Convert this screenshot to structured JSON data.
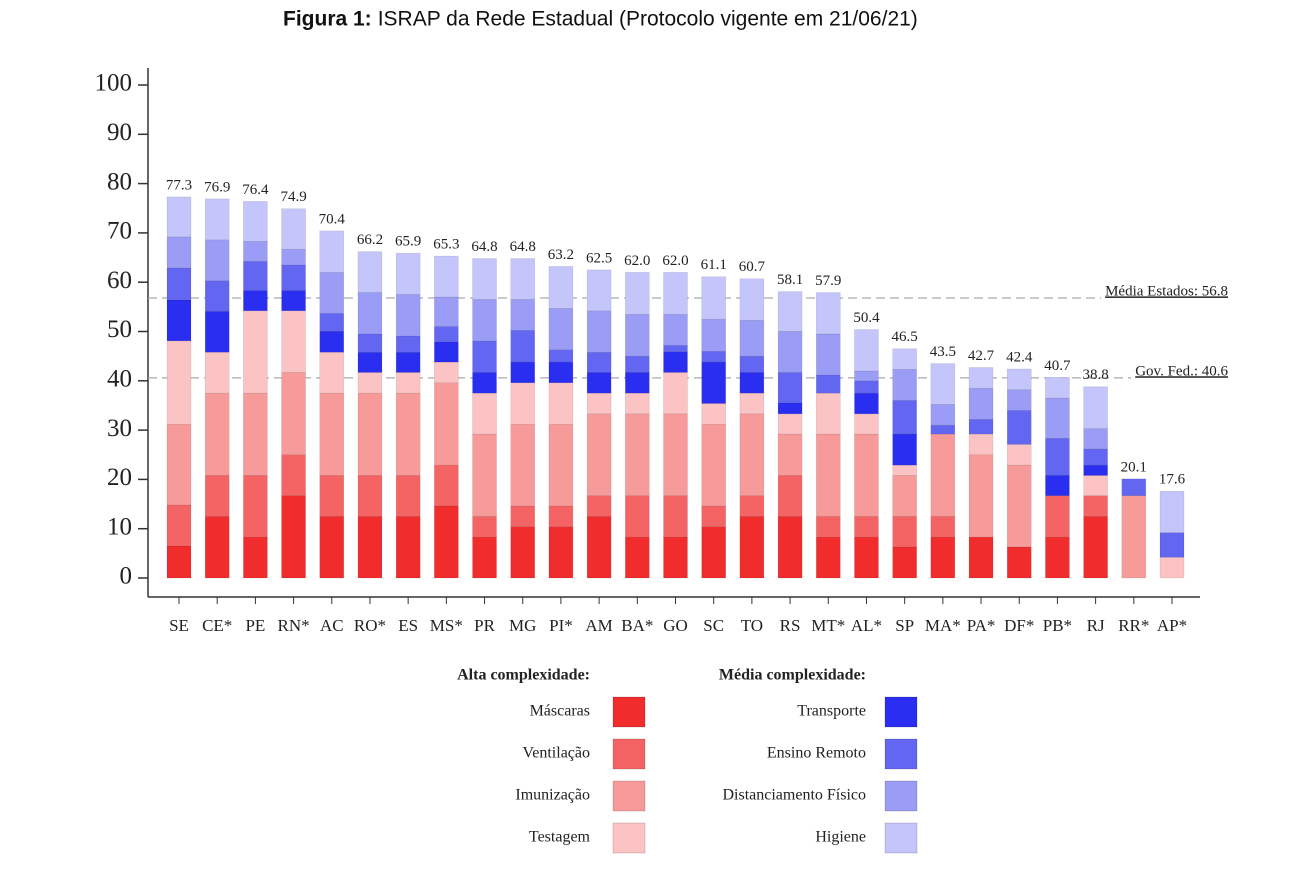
{
  "chart_data": {
    "type": "stacked_bar",
    "title_label": "Figura 1:",
    "title": "ISRAP da Rede Estadual (Protocolo vigente em 21/06/21)",
    "categories": [
      "SE",
      "CE*",
      "PE",
      "RN*",
      "AC",
      "RO*",
      "ES",
      "MS*",
      "PR",
      "MG",
      "PI*",
      "AM",
      "BA*",
      "GO",
      "SC",
      "TO",
      "RS",
      "MT*",
      "AL*",
      "SP",
      "MA*",
      "PA*",
      "DF*",
      "PB*",
      "RJ",
      "RR*",
      "AP*"
    ],
    "series": [
      {
        "name": "Máscaras",
        "color": "#f02c2c",
        "values": [
          6.5,
          12.5,
          8.3,
          16.7,
          12.5,
          12.5,
          12.5,
          14.6,
          8.3,
          10.4,
          10.4,
          12.5,
          8.3,
          8.3,
          10.4,
          12.5,
          12.5,
          8.3,
          8.3,
          6.3,
          8.3,
          8.3,
          6.3,
          8.3,
          12.5,
          0,
          0
        ]
      },
      {
        "name": "Ventilação",
        "color": "#f46464",
        "values": [
          8.3,
          8.3,
          12.5,
          8.3,
          8.3,
          8.3,
          8.3,
          8.3,
          4.2,
          4.2,
          4.2,
          4.2,
          8.4,
          8.4,
          4.2,
          4.2,
          8.3,
          4.2,
          4.2,
          6.2,
          4.2,
          0,
          0,
          8.4,
          4.2,
          0,
          0
        ]
      },
      {
        "name": "Imunização",
        "color": "#f79a9a",
        "values": [
          16.4,
          16.7,
          16.7,
          16.7,
          16.7,
          16.7,
          16.7,
          16.7,
          16.7,
          16.6,
          16.6,
          16.6,
          16.6,
          16.6,
          16.6,
          16.6,
          8.4,
          16.7,
          16.7,
          8.3,
          16.7,
          16.7,
          16.6,
          0,
          0,
          16.7,
          0
        ]
      },
      {
        "name": "Testagem",
        "color": "#fbc3c3",
        "values": [
          16.9,
          8.3,
          16.7,
          12.5,
          8.3,
          4.2,
          4.2,
          4.2,
          8.3,
          8.4,
          8.4,
          4.2,
          4.2,
          8.4,
          4.2,
          4.2,
          4.1,
          8.3,
          4.1,
          2.1,
          0,
          4.2,
          4.2,
          0,
          4.1,
          0,
          4.2
        ]
      },
      {
        "name": "Transporte",
        "color": "#2a2ef0",
        "values": [
          8.3,
          8.3,
          4.1,
          4.1,
          4.2,
          4.1,
          4.1,
          4.1,
          4.2,
          4.2,
          4.2,
          4.2,
          4.2,
          4.2,
          8.4,
          4.2,
          2.2,
          0,
          4.2,
          6.3,
          0,
          0,
          0,
          4.1,
          2.1,
          0,
          0
        ]
      },
      {
        "name": "Ensino Remoto",
        "color": "#6366f0",
        "values": [
          6.5,
          6.2,
          5.9,
          5.2,
          3.7,
          3.7,
          3.3,
          3.1,
          6.4,
          6.4,
          2.5,
          4.1,
          3.3,
          1.3,
          2.2,
          3.3,
          6.2,
          3.7,
          2.5,
          6.8,
          1.8,
          3.0,
          6.9,
          7.5,
          3.3,
          3.4,
          5.0
        ]
      },
      {
        "name": "Distanciamento Físico",
        "color": "#9a9cf5",
        "values": [
          6.3,
          8.3,
          4.1,
          3.2,
          8.3,
          8.4,
          8.4,
          6.0,
          8.4,
          6.3,
          8.4,
          8.4,
          8.5,
          6.3,
          6.5,
          7.3,
          8.3,
          8.3,
          2.0,
          6.3,
          4.2,
          6.3,
          4.2,
          8.2,
          4.1,
          0,
          0
        ]
      },
      {
        "name": "Higiene",
        "color": "#c4c5fa",
        "values": [
          8.1,
          8.3,
          8.1,
          8.2,
          8.4,
          8.3,
          8.4,
          8.3,
          8.3,
          8.3,
          8.5,
          8.3,
          8.5,
          8.5,
          8.6,
          8.4,
          8.1,
          8.4,
          8.4,
          4.2,
          8.3,
          4.2,
          4.2,
          4.2,
          8.5,
          0,
          8.4
        ]
      }
    ],
    "totals": [
      77.3,
      76.9,
      76.4,
      74.9,
      70.4,
      66.2,
      65.9,
      65.3,
      64.8,
      64.8,
      63.2,
      62.5,
      62,
      62,
      61.1,
      60.7,
      58.1,
      57.9,
      50.4,
      46.5,
      43.5,
      42.7,
      42.4,
      40.7,
      38.8,
      20.1,
      17.6
    ],
    "total_labels": [
      "77.3",
      "76.9",
      "76.4",
      "74.9",
      "70.4",
      "66.2",
      "65.9",
      "65.3",
      "64.8",
      "64.8",
      "63.2",
      "62.5",
      "62.0",
      "62.0",
      "61.1",
      "60.7",
      "58.1",
      "57.9",
      "50.4",
      "46.5",
      "43.5",
      "42.7",
      "42.4",
      "40.7",
      "38.8",
      "20.1",
      "17.6"
    ],
    "reference_lines": [
      {
        "value": 56.8,
        "label": "Média Estados: 56.8"
      },
      {
        "value": 40.6,
        "label": "Gov. Fed.: 40.6"
      }
    ],
    "legend_groups": [
      "Alta complexidade:",
      "Média complexidade:"
    ],
    "ylim": [
      0,
      100
    ],
    "yticks": [
      0,
      10,
      20,
      30,
      40,
      50,
      60,
      70,
      80,
      90,
      100
    ]
  }
}
